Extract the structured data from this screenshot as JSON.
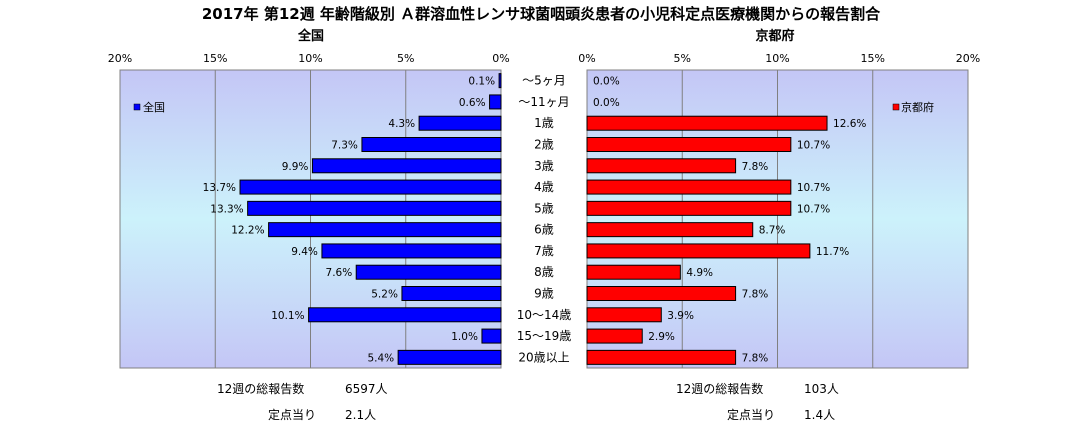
{
  "title": "2017年 第12週 年齢階級別 Ａ群溶血性レンサ球菌咽頭炎患者の小児科定点医療機関からの報告割合",
  "chart_data": [
    {
      "type": "bar",
      "orientation": "horizontal",
      "direction": "right-to-left",
      "title": "全国",
      "legend": "全国",
      "legend_position": "top-left",
      "color": "#0000FF",
      "xlim": [
        0,
        20
      ],
      "ticks": [
        "20%",
        "15%",
        "10%",
        "5%",
        "0%"
      ],
      "tick_values": [
        20,
        15,
        10,
        5,
        0
      ],
      "categories": [
        "～5ヶ月",
        "～11ヶ月",
        "1歳",
        "2歳",
        "3歳",
        "4歳",
        "5歳",
        "6歳",
        "7歳",
        "8歳",
        "9歳",
        "10～14歳",
        "15～19歳",
        "20歳以上"
      ],
      "values": [
        0.1,
        0.6,
        4.3,
        7.3,
        9.9,
        13.7,
        13.3,
        12.2,
        9.4,
        7.6,
        5.2,
        10.1,
        1.0,
        5.4
      ],
      "labels": [
        "0.1%",
        "0.6%",
        "4.3%",
        "7.3%",
        "9.9%",
        "13.7%",
        "13.3%",
        "12.2%",
        "9.4%",
        "7.6%",
        "5.2%",
        "10.1%",
        "1.0%",
        "5.4%"
      ]
    },
    {
      "type": "bar",
      "orientation": "horizontal",
      "direction": "left-to-right",
      "title": "京都府",
      "legend": "京都府",
      "legend_position": "top-right",
      "color": "#FF0000",
      "xlim": [
        0,
        20
      ],
      "ticks": [
        "0%",
        "5%",
        "10%",
        "15%",
        "20%"
      ],
      "tick_values": [
        0,
        5,
        10,
        15,
        20
      ],
      "categories": [
        "～5ヶ月",
        "～11ヶ月",
        "1歳",
        "2歳",
        "3歳",
        "4歳",
        "5歳",
        "6歳",
        "7歳",
        "8歳",
        "9歳",
        "10～14歳",
        "15～19歳",
        "20歳以上"
      ],
      "values": [
        0.0,
        0.0,
        12.6,
        10.7,
        7.8,
        10.7,
        10.7,
        8.7,
        11.7,
        4.9,
        7.8,
        3.9,
        2.9,
        7.8
      ],
      "labels": [
        "0.0%",
        "0.0%",
        "12.6%",
        "10.7%",
        "7.8%",
        "10.7%",
        "10.7%",
        "8.7%",
        "11.7%",
        "4.9%",
        "7.8%",
        "3.9%",
        "2.9%",
        "7.8%"
      ]
    }
  ],
  "footer": {
    "left": {
      "total_label": "12週の総報告数",
      "total_value": "6597人",
      "per_label": "定点当り",
      "per_value": "2.1人"
    },
    "right": {
      "total_label": "12週の総報告数",
      "total_value": "103人",
      "per_label": "定点当り",
      "per_value": "1.4人"
    }
  }
}
